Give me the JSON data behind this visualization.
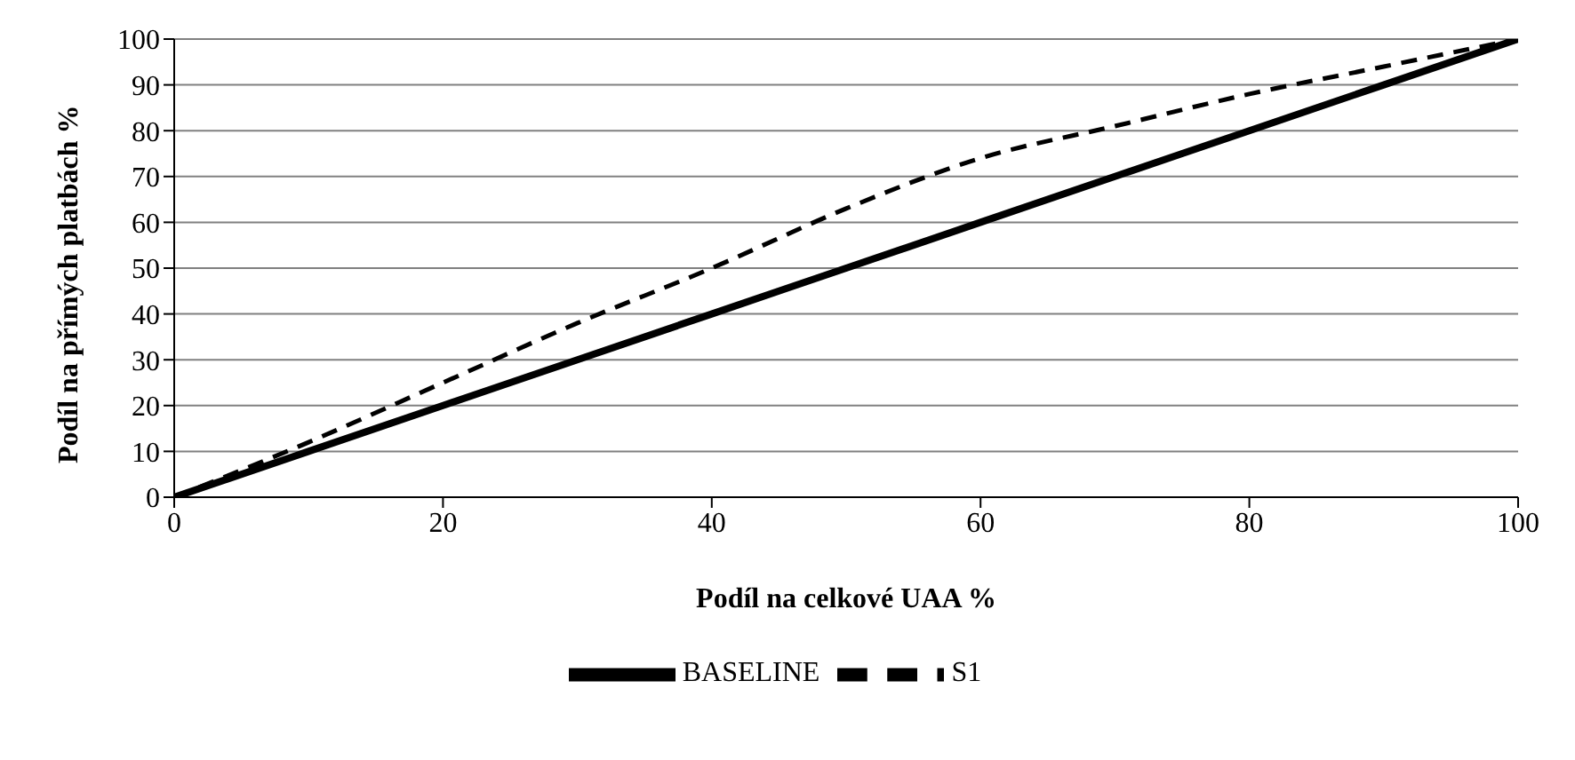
{
  "chart_data": {
    "type": "line",
    "xlabel": "Podíl na celkové UAA %",
    "ylabel": "Podíl na přímých platbách %",
    "x": [
      0,
      10,
      20,
      30,
      40,
      50,
      60,
      70,
      80,
      90,
      100
    ],
    "xlim": [
      0,
      100
    ],
    "xticks": [
      0,
      20,
      40,
      60,
      80,
      100
    ],
    "ylim": [
      0,
      100
    ],
    "yticks": [
      0,
      10,
      20,
      30,
      40,
      50,
      60,
      70,
      80,
      90,
      100
    ],
    "grid": "y",
    "legend": "bottom",
    "marker": "none",
    "series": [
      {
        "name": "BASELINE",
        "color": "#000000",
        "line_style": "solid",
        "values": [
          0,
          10,
          20,
          30,
          40,
          50,
          60,
          70,
          80,
          90,
          100
        ]
      },
      {
        "name": "S1",
        "color": "#000000",
        "line_style": "dashed",
        "values": [
          0,
          12,
          25,
          38,
          50,
          63,
          74,
          81,
          88,
          94,
          100
        ]
      }
    ]
  }
}
